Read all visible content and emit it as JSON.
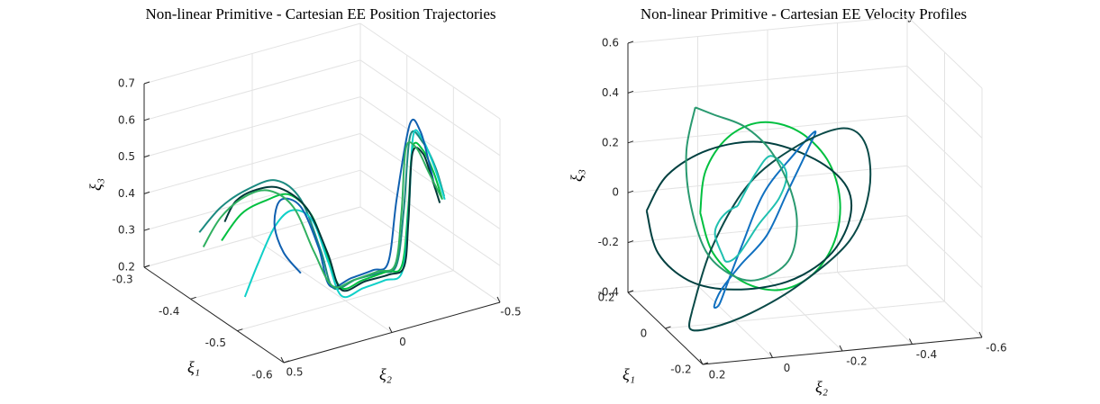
{
  "chart_data": [
    {
      "type": "line3d",
      "title": "Non-linear Primitive - Cartesian EE Position Trajectories",
      "xlabel": "ξ₁",
      "ylabel": "ξ₂",
      "zlabel": "ξ₃",
      "xlim": [
        -0.6,
        -0.3
      ],
      "ylim": [
        -0.5,
        0.5
      ],
      "zlim": [
        0.2,
        0.7
      ],
      "xticks": [
        -0.6,
        -0.5,
        -0.4,
        -0.3
      ],
      "yticks": [
        -0.5,
        0,
        0.5
      ],
      "zticks": [
        0.2,
        0.3,
        0.4,
        0.5,
        0.6,
        0.7
      ],
      "grid": true,
      "series": [
        {
          "color": "#1b8a80",
          "x": [
            -0.4,
            -0.41,
            -0.42,
            -0.43,
            -0.45,
            -0.48,
            -0.5,
            -0.5,
            -0.5,
            -0.5,
            -0.5,
            -0.5,
            -0.49,
            -0.48,
            -0.48
          ],
          "y": [
            0.46,
            0.38,
            0.28,
            0.17,
            0.1,
            0.07,
            0.056,
            -0.05,
            -0.16,
            -0.236,
            -0.27,
            -0.3,
            -0.38,
            -0.46,
            -0.5
          ],
          "z": [
            0.375,
            0.44,
            0.48,
            0.495,
            0.45,
            0.33,
            0.244,
            0.25,
            0.25,
            0.257,
            0.4,
            0.6,
            0.56,
            0.47,
            0.385
          ]
        },
        {
          "color": "#00c040",
          "x": [
            -0.42,
            -0.43,
            -0.44,
            -0.45,
            -0.47,
            -0.49,
            -0.51,
            -0.51,
            -0.51,
            -0.51,
            -0.51,
            -0.51,
            -0.5,
            -0.49,
            -0.49
          ],
          "y": [
            0.4,
            0.33,
            0.24,
            0.15,
            0.09,
            0.06,
            0.04,
            -0.06,
            -0.17,
            -0.24,
            -0.27,
            -0.29,
            -0.36,
            -0.43,
            -0.47
          ],
          "z": [
            0.36,
            0.43,
            0.46,
            0.47,
            0.42,
            0.32,
            0.25,
            0.255,
            0.26,
            0.265,
            0.42,
            0.58,
            0.55,
            0.47,
            0.39
          ]
        },
        {
          "color": "#10d0c8",
          "x": [
            -0.47,
            -0.47,
            -0.47,
            -0.47,
            -0.48,
            -0.5,
            -0.52,
            -0.52,
            -0.52,
            -0.52,
            -0.52,
            -0.52,
            -0.51,
            -0.5,
            -0.5
          ],
          "y": [
            0.4,
            0.34,
            0.26,
            0.18,
            0.11,
            0.08,
            0.06,
            -0.04,
            -0.14,
            -0.22,
            -0.25,
            -0.27,
            -0.33,
            -0.41,
            -0.46
          ],
          "z": [
            0.25,
            0.33,
            0.42,
            0.45,
            0.42,
            0.32,
            0.24,
            0.245,
            0.25,
            0.26,
            0.42,
            0.62,
            0.6,
            0.5,
            0.4
          ]
        },
        {
          "color": "#1060b0",
          "x": [
            -0.46,
            -0.46,
            -0.45,
            -0.44,
            -0.45,
            -0.47,
            -0.49,
            -0.49,
            -0.49,
            -0.49,
            -0.49,
            -0.49,
            -0.48,
            -0.47,
            -0.47
          ],
          "y": [
            0.12,
            0.2,
            0.22,
            0.17,
            0.1,
            0.06,
            0.05,
            -0.05,
            -0.15,
            -0.22,
            -0.26,
            -0.32,
            -0.39,
            -0.45,
            -0.48
          ],
          "z": [
            0.26,
            0.33,
            0.4,
            0.45,
            0.43,
            0.33,
            0.24,
            0.245,
            0.25,
            0.26,
            0.43,
            0.62,
            0.58,
            0.48,
            0.4
          ]
        },
        {
          "color": "#003838",
          "x": [
            -0.38,
            -0.39,
            -0.41,
            -0.43,
            -0.46,
            -0.49,
            -0.51,
            -0.51,
            -0.51,
            -0.51,
            -0.51,
            -0.5,
            -0.49,
            -0.48,
            -0.48
          ],
          "y": [
            0.3,
            0.27,
            0.22,
            0.15,
            0.09,
            0.06,
            0.04,
            -0.07,
            -0.18,
            -0.25,
            -0.27,
            -0.31,
            -0.38,
            -0.44,
            -0.48
          ],
          "z": [
            0.36,
            0.42,
            0.46,
            0.47,
            0.43,
            0.33,
            0.245,
            0.25,
            0.25,
            0.26,
            0.38,
            0.55,
            0.53,
            0.45,
            0.37
          ]
        },
        {
          "color": "#30b060",
          "x": [
            -0.39,
            -0.4,
            -0.41,
            -0.42,
            -0.44,
            -0.47,
            -0.5,
            -0.5,
            -0.5,
            -0.5,
            -0.5,
            -0.5,
            -0.49,
            -0.48,
            -0.48
          ],
          "y": [
            0.42,
            0.36,
            0.27,
            0.18,
            0.11,
            0.08,
            0.06,
            -0.04,
            -0.15,
            -0.23,
            -0.26,
            -0.28,
            -0.35,
            -0.43,
            -0.49
          ],
          "z": [
            0.32,
            0.4,
            0.45,
            0.46,
            0.42,
            0.32,
            0.25,
            0.25,
            0.255,
            0.26,
            0.4,
            0.57,
            0.55,
            0.46,
            0.38
          ]
        }
      ]
    },
    {
      "type": "line3d",
      "title": "Non-linear Primitive - Cartesian EE Velocity Profiles",
      "xlabel": "ξ₁",
      "ylabel": "ξ₂",
      "zlabel": "ξ₃",
      "xlim": [
        -0.2,
        0.2
      ],
      "ylim": [
        -0.6,
        0.2
      ],
      "zlim": [
        -0.4,
        0.6
      ],
      "xticks": [
        -0.2,
        0,
        0.2
      ],
      "yticks": [
        -0.6,
        -0.4,
        -0.2,
        0,
        0.2
      ],
      "zticks": [
        -0.4,
        -0.2,
        0,
        0.2,
        0.4,
        0.6
      ],
      "grid": true,
      "series": [
        {
          "color": "#00c040",
          "x": [
            0,
            0.02,
            0.04,
            0.05,
            0.04,
            0.02,
            0,
            -0.02,
            -0.04,
            -0.05,
            -0.04,
            -0.02,
            0
          ],
          "y": [
            0.1,
            0.074,
            0,
            -0.1,
            -0.2,
            -0.274,
            -0.3,
            -0.274,
            -0.2,
            -0.1,
            0,
            0.074,
            0.1
          ],
          "z": [
            0.05,
            0.2,
            0.31,
            0.35,
            0.31,
            0.2,
            0.05,
            -0.1,
            -0.21,
            -0.25,
            -0.21,
            -0.1,
            0.05
          ]
        },
        {
          "color": "#004040",
          "x": [
            0.1,
            0.05,
            0,
            -0.05,
            -0.1,
            -0.1,
            -0.05,
            0,
            0.05,
            0.1,
            0.1,
            0.1,
            0.1
          ],
          "y": [
            0.2,
            0.167,
            0.075,
            -0.05,
            -0.175,
            -0.267,
            -0.3,
            -0.267,
            -0.175,
            -0.05,
            0.075,
            0.167,
            0.2
          ],
          "z": [
            0,
            0.175,
            0.3,
            0.35,
            0.3,
            0.175,
            0,
            -0.175,
            -0.3,
            -0.35,
            -0.3,
            -0.175,
            0
          ]
        },
        {
          "color": "#1070c0",
          "x": [
            0.05,
            0.06,
            0.07,
            0.06,
            0.04,
            0.02,
            0,
            -0.02,
            -0.03,
            -0.02,
            0,
            0.03,
            0.05
          ],
          "y": [
            0,
            -0.05,
            -0.12,
            -0.2,
            -0.25,
            -0.22,
            -0.15,
            -0.08,
            0,
            0.05,
            0.06,
            0.03,
            0
          ],
          "z": [
            -0.3,
            -0.15,
            0.05,
            0.2,
            0.3,
            0.25,
            0.1,
            -0.05,
            -0.15,
            -0.25,
            -0.33,
            -0.35,
            -0.3
          ]
        },
        {
          "color": "#0a4a48",
          "x": [
            -0.05,
            -0.06,
            -0.07,
            -0.05,
            -0.02,
            0.01,
            0.03,
            0.04,
            0.03,
            0.01,
            -0.02,
            -0.04,
            -0.05
          ],
          "y": [
            0.15,
            0.1,
            0,
            -0.15,
            -0.3,
            -0.38,
            -0.4,
            -0.35,
            -0.2,
            -0.05,
            0.08,
            0.15,
            0.15
          ],
          "z": [
            -0.3,
            -0.05,
            0.2,
            0.32,
            0.35,
            0.25,
            0.05,
            -0.15,
            -0.3,
            -0.38,
            -0.4,
            -0.38,
            -0.3
          ]
        },
        {
          "color": "#20c0b0",
          "x": [
            0.08,
            0.08,
            0.09,
            0.1,
            0.1,
            0.1,
            0.09,
            0.08,
            0.07,
            0.07,
            0.07,
            0.08,
            0.08
          ],
          "y": [
            -0.05,
            -0.1,
            -0.15,
            -0.2,
            -0.18,
            -0.12,
            -0.06,
            -0.02,
            0,
            0.02,
            0.01,
            -0.02,
            -0.05
          ],
          "z": [
            0,
            0.12,
            0.18,
            0.1,
            0,
            -0.1,
            -0.2,
            -0.22,
            -0.18,
            -0.1,
            -0.05,
            -0.02,
            0
          ]
        },
        {
          "color": "#2a9a70",
          "x": [
            0.12,
            0.11,
            0.1,
            0.09,
            0.08,
            0.08,
            0.09,
            0.1,
            0.11,
            0.12,
            0.13,
            0.13,
            0.12
          ],
          "y": [
            0.05,
            0.0,
            -0.08,
            -0.15,
            -0.2,
            -0.22,
            -0.2,
            -0.12,
            -0.05,
            0.02,
            0.06,
            0.07,
            0.05
          ],
          "z": [
            0.38,
            0.35,
            0.3,
            0.2,
            0.05,
            -0.1,
            -0.25,
            -0.32,
            -0.3,
            -0.2,
            0,
            0.2,
            0.38
          ]
        }
      ]
    }
  ]
}
